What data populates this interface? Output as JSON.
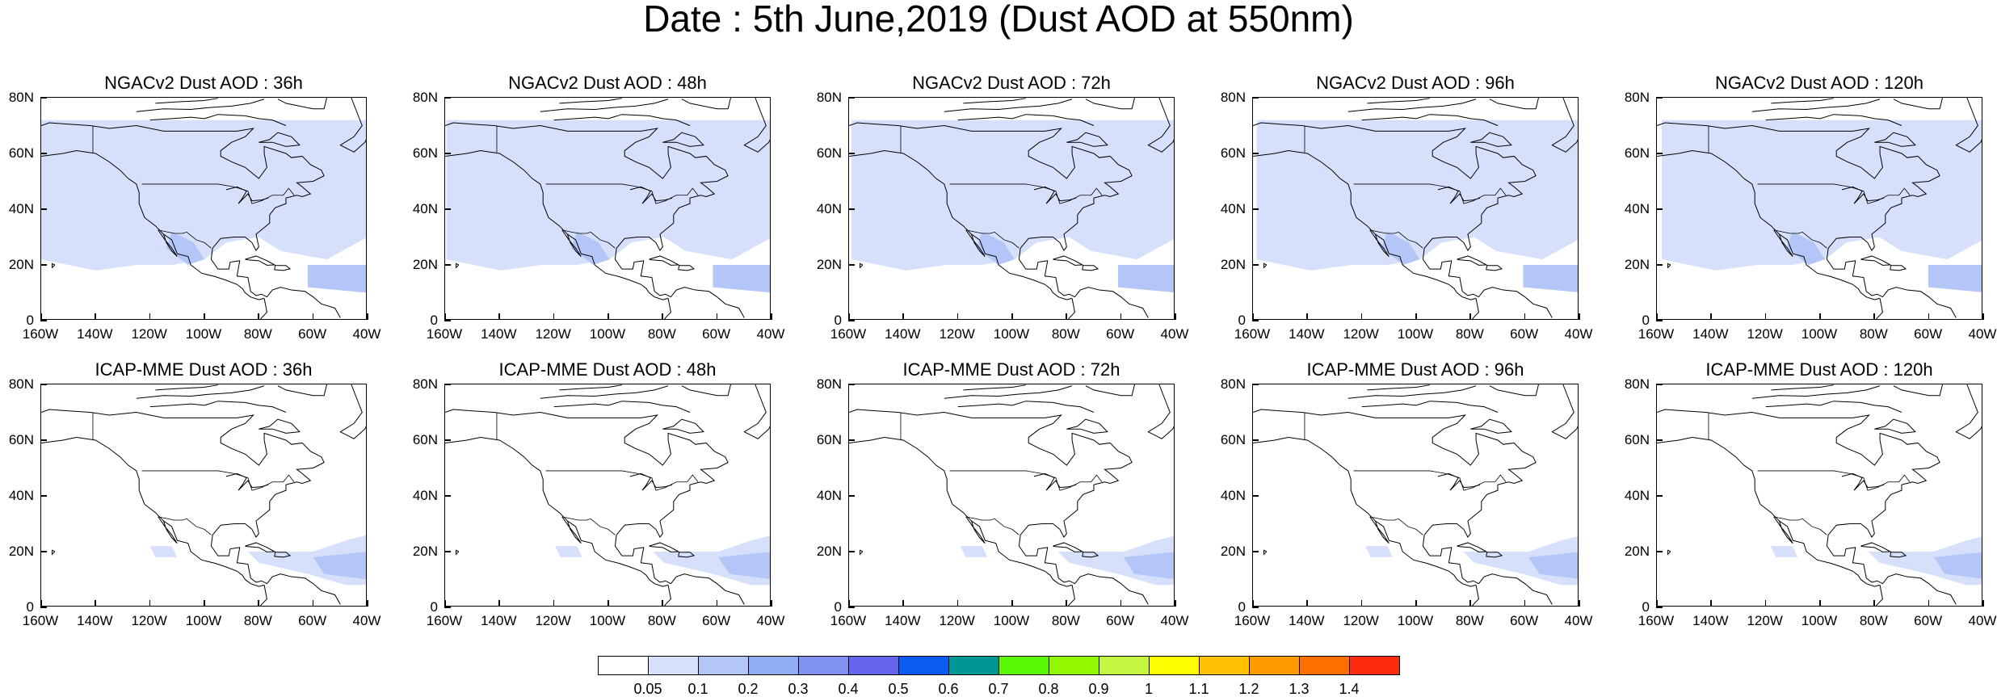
{
  "title": "Date : 5th June,2019 (Dust AOD at 550nm)",
  "ytick_labels": [
    "80N",
    "60N",
    "40N",
    "20N",
    "0"
  ],
  "xtick_labels": [
    "160W",
    "140W",
    "120W",
    "100W",
    "80W",
    "60W",
    "40W"
  ],
  "rows": [
    {
      "model": "NGACv2",
      "panels": [
        {
          "title": "NGACv2 Dust AOD : 36h",
          "lead_h": 36
        },
        {
          "title": "NGACv2 Dust AOD : 48h",
          "lead_h": 48
        },
        {
          "title": "NGACv2 Dust AOD : 72h",
          "lead_h": 72
        },
        {
          "title": "NGACv2 Dust AOD : 96h",
          "lead_h": 96
        },
        {
          "title": "NGACv2 Dust AOD : 120h",
          "lead_h": 120
        }
      ]
    },
    {
      "model": "ICAP-MME",
      "panels": [
        {
          "title": "ICAP-MME Dust AOD : 36h",
          "lead_h": 36
        },
        {
          "title": "ICAP-MME Dust AOD : 48h",
          "lead_h": 48
        },
        {
          "title": "ICAP-MME Dust AOD : 72h",
          "lead_h": 72
        },
        {
          "title": "ICAP-MME Dust AOD : 96h",
          "lead_h": 96
        },
        {
          "title": "ICAP-MME Dust AOD : 120h",
          "lead_h": 120
        }
      ]
    }
  ],
  "map_extent": {
    "lon_min": -160,
    "lon_max": -40,
    "lat_min": 0,
    "lat_max": 80
  },
  "colorbar": {
    "labels": [
      "0.05",
      "0.1",
      "0.2",
      "0.3",
      "0.4",
      "0.5",
      "0.6",
      "0.7",
      "0.8",
      "0.9",
      "1",
      "1.1",
      "1.2",
      "1.3",
      "1.4"
    ],
    "colors": [
      "#ffffff",
      "#d6e0fb",
      "#b3c6f7",
      "#91acf3",
      "#7f92f0",
      "#6565ee",
      "#0d5cf2",
      "#019696",
      "#5af804",
      "#93f700",
      "#c3f742",
      "#fffe00",
      "#ffc101",
      "#ff9a00",
      "#ff6f02",
      "#fc2a0f"
    ]
  }
}
